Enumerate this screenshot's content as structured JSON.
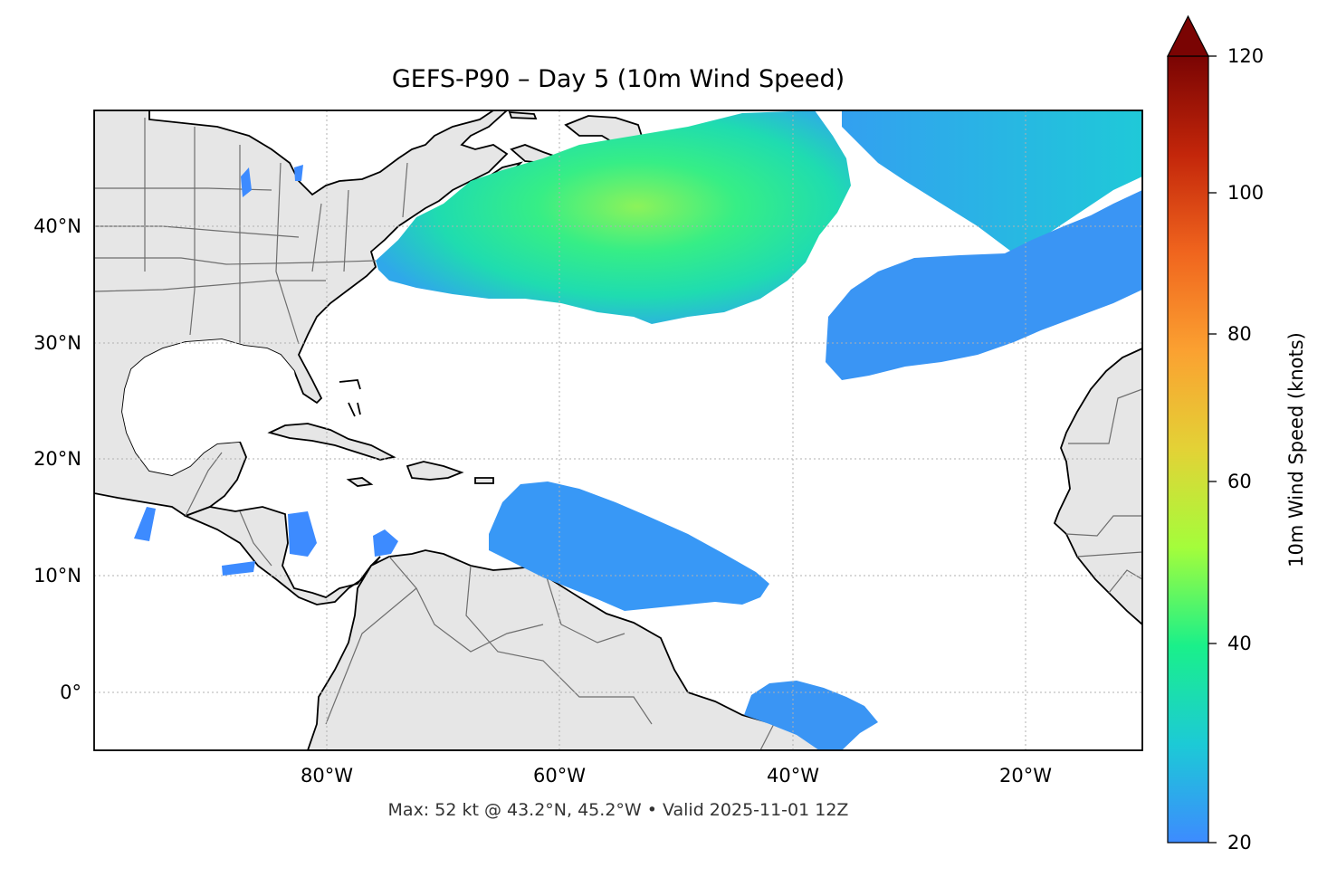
{
  "title": "GEFS-P90 – Day 5 (10m Wind Speed)",
  "footer": "Max: 52 kt @ 43.2°N, 45.2°W • Valid 2025-11-01 12Z",
  "map": {
    "projection": "PlateCarree",
    "lon_range": [
      -100,
      -10
    ],
    "lat_range": [
      -5,
      50
    ],
    "graticule": "dotted gray",
    "land_color": "#e6e6e6",
    "ocean_color": "#ffffff",
    "lat_ticks": [
      {
        "value": 40,
        "label": "40°N"
      },
      {
        "value": 30,
        "label": "30°N"
      },
      {
        "value": 20,
        "label": "20°N"
      },
      {
        "value": 10,
        "label": "10°N"
      },
      {
        "value": 0,
        "label": "0°"
      }
    ],
    "lon_ticks": [
      {
        "value": -80,
        "label": "80°W"
      },
      {
        "value": -60,
        "label": "60°W"
      },
      {
        "value": -40,
        "label": "40°W"
      },
      {
        "value": -20,
        "label": "20°W"
      }
    ]
  },
  "colorbar": {
    "label": "10m Wind Speed (knots)",
    "min": 20,
    "max": 120,
    "extend": "max",
    "ticks": [
      {
        "value": 120,
        "label": "120"
      },
      {
        "value": 100,
        "label": "100"
      },
      {
        "value": 80,
        "label": "80"
      },
      {
        "value": 60,
        "label": "60"
      },
      {
        "value": 40,
        "label": "40"
      },
      {
        "value": 20,
        "label": "20"
      }
    ],
    "colors": [
      "#3d8bff",
      "#1ccad6",
      "#1af08a",
      "#a4fd3b",
      "#e3d236",
      "#fba131",
      "#f0651e",
      "#c3260a",
      "#7a0403"
    ]
  },
  "max_point": {
    "lat": 43.2,
    "lon": -45.2,
    "value": 52
  }
}
